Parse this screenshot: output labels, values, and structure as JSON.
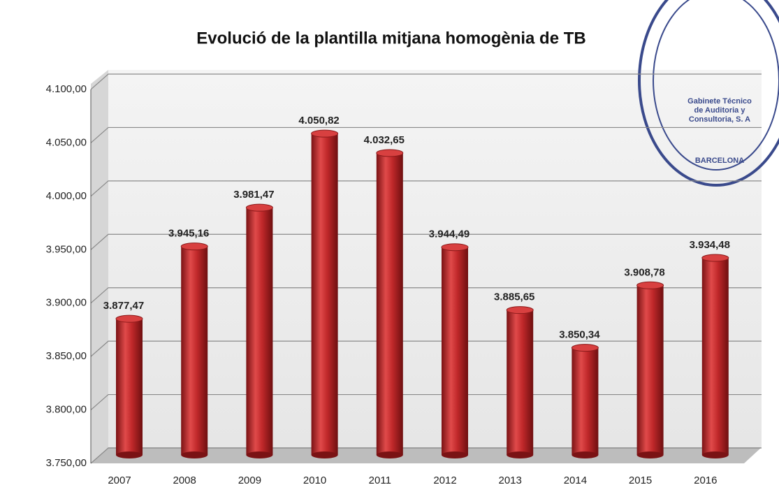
{
  "chart_data": {
    "type": "bar",
    "title": "Evolució de la plantilla mitjana homogènia de TB",
    "categories": [
      "2007",
      "2008",
      "2009",
      "2010",
      "2011",
      "2012",
      "2013",
      "2014",
      "2015",
      "2016"
    ],
    "values": [
      3877.47,
      3945.16,
      3981.47,
      4050.82,
      4032.65,
      3944.49,
      3885.65,
      3850.34,
      3908.78,
      3934.48
    ],
    "value_labels": [
      "3.877,47",
      "3.945,16",
      "3.981,47",
      "4.050,82",
      "4.032,65",
      "3.944,49",
      "3.885,65",
      "3.850,34",
      "3.908,78",
      "3.934,48"
    ],
    "color": "#c0282a",
    "ylim": [
      3750,
      4100
    ],
    "yticks": [
      {
        "value": 3750,
        "label": "3.750,00"
      },
      {
        "value": 3800,
        "label": "3.800,00"
      },
      {
        "value": 3850,
        "label": "3.850,00"
      },
      {
        "value": 3900,
        "label": "3.900,00"
      },
      {
        "value": 3950,
        "label": "3.950,00"
      },
      {
        "value": 4000,
        "label": "4.000,00"
      },
      {
        "value": 4050,
        "label": "4.050,00"
      },
      {
        "value": 4100,
        "label": "4.100,00"
      }
    ],
    "grid": true,
    "annotations": [
      "Gabinete Técnico",
      "de Auditoria y",
      "Consultoria, S. A",
      "BARCELONA"
    ]
  }
}
